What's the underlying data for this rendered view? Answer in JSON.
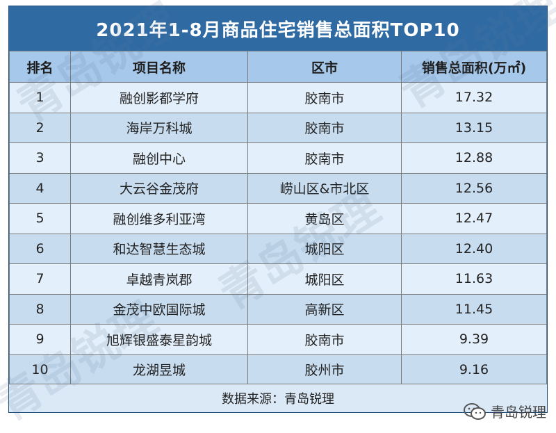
{
  "title": "2021年1-8月商品住宅销售总面积TOP10",
  "headers": {
    "rank": "排名",
    "name": "项目名称",
    "city": "区市",
    "area": "销售总面积(万㎡)"
  },
  "rows": [
    {
      "rank": "1",
      "name": "融创影都学府",
      "city": "胶南市",
      "area": "17.32"
    },
    {
      "rank": "2",
      "name": "海岸万科城",
      "city": "胶南市",
      "area": "13.15"
    },
    {
      "rank": "3",
      "name": "融创中心",
      "city": "胶南市",
      "area": "12.88"
    },
    {
      "rank": "4",
      "name": "大云谷金茂府",
      "city": "崂山区&市北区",
      "area": "12.56"
    },
    {
      "rank": "5",
      "name": "融创维多利亚湾",
      "city": "黄岛区",
      "area": "12.47"
    },
    {
      "rank": "6",
      "name": "和达智慧生态城",
      "city": "城阳区",
      "area": "12.40"
    },
    {
      "rank": "7",
      "name": "卓越青岚郡",
      "city": "城阳区",
      "area": "11.63"
    },
    {
      "rank": "8",
      "name": "金茂中欧国际城",
      "city": "高新区",
      "area": "11.45"
    },
    {
      "rank": "9",
      "name": "旭辉银盛泰星韵城",
      "city": "胶南市",
      "area": "9.39"
    },
    {
      "rank": "10",
      "name": "龙湖昱城",
      "city": "胶州市",
      "area": "9.16"
    }
  ],
  "footer": "数据来源：青岛锐理",
  "watermark": "青岛锐理",
  "brand": {
    "label": "青岛锐理",
    "icon": "wechat-icon"
  },
  "colors": {
    "title_bg": "#2f6aa3",
    "header_bg": "#a6c8ea",
    "row_light": "#e3effa",
    "row_dark": "#c8dcf0"
  }
}
